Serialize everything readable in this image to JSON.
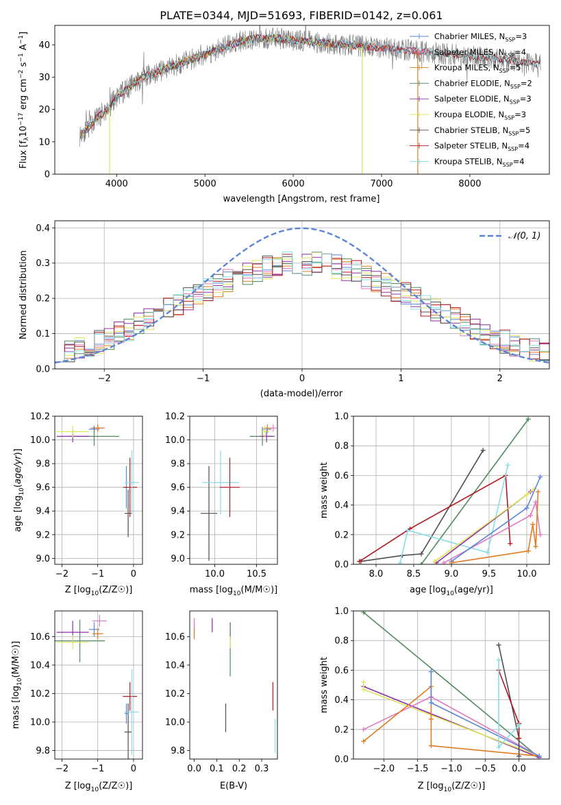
{
  "title": "PLATE=0344, MJD=51693, FIBERID=0142, z=0.061",
  "colors": {
    "MILES_Chabrier": "#5b86d6",
    "MILES_Salpeter": "#e377c2",
    "MILES_Kroupa": "#e07b1e",
    "ELODIE_Chabrier": "#4e8a5e",
    "ELODIE_Salpeter": "#8e2ea3",
    "ELODIE_Kroupa": "#dde55a",
    "STELIB_Chabrier": "#4d4d4d",
    "STELIB_Salpeter": "#b2181f",
    "STELIB_Kroupa": "#86dde6",
    "normal_curve": "#5b86d6",
    "grid": "#b0b0b0"
  },
  "chart_data": [
    {
      "id": "spectrum",
      "type": "line",
      "xlabel": "wavelength [Angstrom, rest frame]",
      "ylabel": "Flux [f_λ10^-17 erg cm^-2 s^-1 A^-1]",
      "xlim": [
        3300,
        8900
      ],
      "ylim": [
        0,
        46
      ],
      "xticks": [
        4000,
        5000,
        6000,
        7000,
        8000
      ],
      "yticks": [
        0,
        10,
        20,
        30,
        40
      ],
      "grid": false,
      "legend_position": "upper-right",
      "continuum": {
        "x": [
          3580,
          3700,
          3800,
          3900,
          4000,
          4100,
          4200,
          4300,
          4400,
          4600,
          4800,
          5000,
          5200,
          5400,
          5600,
          5800,
          6000,
          6200,
          6400,
          6600,
          6800,
          7000,
          7200,
          7400,
          7600,
          7800,
          8000,
          8200,
          8400,
          8600,
          8800
        ],
        "y": [
          12,
          15,
          18,
          20,
          24,
          26,
          28,
          30,
          31,
          33,
          35,
          37,
          39,
          41,
          42,
          42,
          41.5,
          41,
          40.5,
          40,
          39.5,
          39,
          38.5,
          38,
          37.5,
          37,
          36.5,
          36,
          35.5,
          34.5,
          34
        ]
      },
      "series": [
        {
          "name": "Chabrier MILES, N_SSP=3",
          "color_key": "MILES_Chabrier",
          "x_end": 7500
        },
        {
          "name": "Salpeter MILES, N_SSP=4",
          "color_key": "MILES_Salpeter",
          "x_end": 7500
        },
        {
          "name": "Kroupa MILES, N_SSP=5",
          "color_key": "MILES_Kroupa",
          "x_end": 7500
        },
        {
          "name": "Chabrier ELODIE, N_SSP=2",
          "color_key": "ELODIE_Chabrier",
          "x_end": 6800
        },
        {
          "name": "Salpeter ELODIE, N_SSP=3",
          "color_key": "ELODIE_Salpeter",
          "x_end": 6800
        },
        {
          "name": "Kroupa ELODIE, N_SSP=3",
          "color_key": "ELODIE_Kroupa",
          "x_end": 6800
        },
        {
          "name": "Chabrier STELIB, N_SSP=5",
          "color_key": "STELIB_Chabrier",
          "x_end": 8800
        },
        {
          "name": "Salpeter STELIB, N_SSP=4",
          "color_key": "STELIB_Salpeter",
          "x_end": 8800
        },
        {
          "name": "Kroupa STELIB, N_SSP=4",
          "color_key": "STELIB_Kroupa",
          "x_end": 8800
        }
      ],
      "legend_labels": [
        {
          "pre": "Chabrier MILES, N",
          "sub": "SSP",
          "post": "=3"
        },
        {
          "pre": "Salpeter MILES, N",
          "sub": "SSP",
          "post": "=4"
        },
        {
          "pre": "Kroupa MILES, N",
          "sub": "SSP",
          "post": "=5"
        },
        {
          "pre": "Chabrier ELODIE, N",
          "sub": "SSP",
          "post": "=2"
        },
        {
          "pre": "Salpeter ELODIE, N",
          "sub": "SSP",
          "post": "=3"
        },
        {
          "pre": "Kroupa ELODIE, N",
          "sub": "SSP",
          "post": "=3"
        },
        {
          "pre": "Chabrier STELIB, N",
          "sub": "SSP",
          "post": "=5"
        },
        {
          "pre": "Salpeter STELIB, N",
          "sub": "SSP",
          "post": "=4"
        },
        {
          "pre": "Kroupa STELIB, N",
          "sub": "SSP",
          "post": "=4"
        }
      ]
    },
    {
      "id": "residuals",
      "type": "step",
      "xlabel": "(data-model)/error",
      "ylabel": "Normed distribution",
      "xlim": [
        -2.5,
        2.5
      ],
      "ylim": [
        0,
        0.42
      ],
      "xticks": [
        -2,
        -1,
        0,
        1,
        2
      ],
      "xtick_labels": [
        "−2",
        "−1",
        "0",
        "1",
        "2"
      ],
      "yticks": [
        0.0,
        0.1,
        0.2,
        0.3,
        0.4
      ],
      "ytick_labels": [
        "0.0",
        "0.1",
        "0.2",
        "0.3",
        "0.4"
      ],
      "grid": true,
      "bin_width": 0.1,
      "envelope_center": 0.3,
      "envelope_width": 1.25,
      "normal_curve": {
        "name": "𝒩(0, 1)",
        "mean": 0,
        "sigma": 1
      }
    },
    {
      "id": "age_vs_Z",
      "type": "errorbar",
      "xlabel": "Z [log10(Z/Z☉)]",
      "ylabel": "age  [log10(age/yr)]",
      "xlim": [
        -2.2,
        0.25
      ],
      "ylim": [
        8.95,
        10.2
      ],
      "xticks": [
        -2,
        -1,
        0
      ],
      "xtick_labels": [
        "−2",
        "−1",
        "0"
      ],
      "yticks": [
        9.0,
        9.2,
        9.4,
        9.6,
        9.8,
        10.0,
        10.2
      ],
      "ytick_labels": [
        "9.0",
        "9.2",
        "9.4",
        "9.6",
        "9.8",
        "10.0",
        "10.2"
      ],
      "grid": true,
      "points": [
        {
          "k": "MILES_Chabrier",
          "x": -1.1,
          "xerr": 0.15,
          "y": 10.09,
          "yerr": 0.03
        },
        {
          "k": "MILES_Salpeter",
          "x": -1.0,
          "xerr": 0.2,
          "y": 10.1,
          "yerr": 0.03
        },
        {
          "k": "MILES_Kroupa",
          "x": -1.0,
          "xerr": 0.15,
          "y": 10.1,
          "yerr": 0.03
        },
        {
          "k": "ELODIE_Chabrier",
          "x": -1.1,
          "xerr": 0.7,
          "y": 10.03,
          "yerr": 0.08
        },
        {
          "k": "ELODIE_Salpeter",
          "x": -1.7,
          "xerr": 0.45,
          "y": 10.03,
          "yerr": 0.05
        },
        {
          "k": "ELODIE_Kroupa",
          "x": -1.7,
          "xerr": 0.45,
          "y": 10.07,
          "yerr": 0.05
        },
        {
          "k": "MILES_Chabrier",
          "x": -0.2,
          "xerr": 0.05,
          "y": 9.6,
          "yerr": 0.18
        },
        {
          "k": "STELIB_Chabrier",
          "x": -0.15,
          "xerr": 0.1,
          "y": 9.38,
          "yerr": 0.2
        },
        {
          "k": "STELIB_Salpeter",
          "x": -0.1,
          "xerr": 0.2,
          "y": 9.6,
          "yerr": 0.25
        },
        {
          "k": "STELIB_Kroupa",
          "x": -0.05,
          "xerr": 0.2,
          "y": 9.64,
          "yerr": 0.27
        }
      ]
    },
    {
      "id": "age_vs_mass",
      "type": "errorbar",
      "xlabel": "mass [log10(M/M☉)]",
      "ylabel": "",
      "xlim": [
        9.7,
        10.75
      ],
      "ylim": [
        8.95,
        10.2
      ],
      "xticks": [
        10.0,
        10.5
      ],
      "xtick_labels": [
        "10.0",
        "10.5"
      ],
      "yticks": [
        9.0,
        9.2,
        9.4,
        9.6,
        9.8,
        10.0,
        10.2
      ],
      "ytick_labels": [
        "9.0",
        "9.2",
        "9.4",
        "9.6",
        "9.8",
        "10.0",
        "10.2"
      ],
      "grid": true,
      "points": [
        {
          "k": "MILES_Chabrier",
          "x": 10.63,
          "xerr": 0.05,
          "y": 10.09,
          "yerr": 0.03
        },
        {
          "k": "MILES_Salpeter",
          "x": 10.7,
          "xerr": 0.04,
          "y": 10.1,
          "yerr": 0.03
        },
        {
          "k": "MILES_Kroupa",
          "x": 10.63,
          "xerr": 0.04,
          "y": 10.1,
          "yerr": 0.03
        },
        {
          "k": "ELODIE_Chabrier",
          "x": 10.57,
          "xerr": 0.15,
          "y": 10.03,
          "yerr": 0.08
        },
        {
          "k": "ELODIE_Salpeter",
          "x": 10.62,
          "xerr": 0.08,
          "y": 10.03,
          "yerr": 0.05
        },
        {
          "k": "ELODIE_Kroupa",
          "x": 10.6,
          "xerr": 0.05,
          "y": 10.07,
          "yerr": 0.05
        },
        {
          "k": "STELIB_Chabrier",
          "x": 9.93,
          "xerr": 0.1,
          "y": 9.38,
          "yerr": 0.4
        },
        {
          "k": "STELIB_Kroupa",
          "x": 10.07,
          "xerr": 0.22,
          "y": 9.64,
          "yerr": 0.27
        },
        {
          "k": "STELIB_Salpeter",
          "x": 10.18,
          "xerr": 0.12,
          "y": 9.6,
          "yerr": 0.25
        }
      ]
    },
    {
      "id": "massweight_vs_age",
      "type": "line",
      "xlabel": "age  [log10(age/yr)]",
      "ylabel": "mass weight",
      "xlim": [
        7.7,
        10.3
      ],
      "ylim": [
        0,
        1.0
      ],
      "xticks": [
        8.0,
        8.5,
        9.0,
        9.5,
        10.0
      ],
      "xtick_labels": [
        "8.0",
        "8.5",
        "9.0",
        "9.5",
        "10.0"
      ],
      "yticks": [
        0.0,
        0.2,
        0.4,
        0.6,
        0.8,
        1.0
      ],
      "ytick_labels": [
        "0.0",
        "0.2",
        "0.4",
        "0.6",
        "0.8",
        "1.0"
      ],
      "grid": true,
      "series": [
        {
          "k": "ELODIE_Chabrier",
          "x": [
            8.6,
            10.02
          ],
          "y": [
            0.0,
            0.98
          ]
        },
        {
          "k": "STELIB_Chabrier",
          "x": [
            7.8,
            8.35,
            8.6,
            9.42
          ],
          "y": [
            0.02,
            0.06,
            0.07,
            0.77
          ]
        },
        {
          "k": "STELIB_Salpeter",
          "x": [
            7.78,
            8.45,
            9.72,
            9.78
          ],
          "y": [
            0.02,
            0.24,
            0.6,
            0.14
          ]
        },
        {
          "k": "STELIB_Kroupa",
          "x": [
            8.32,
            8.42,
            9.48,
            9.75
          ],
          "y": [
            0.01,
            0.23,
            0.08,
            0.67
          ]
        },
        {
          "k": "ELODIE_Salpeter",
          "x": [
            8.8,
            10.05
          ],
          "y": [
            0.01,
            0.49
          ]
        },
        {
          "k": "ELODIE_Kroupa",
          "x": [
            8.78,
            10.0,
            10.1
          ],
          "y": [
            0.02,
            0.47,
            0.51
          ]
        },
        {
          "k": "MILES_Salpeter",
          "x": [
            8.9,
            10.05,
            10.12,
            10.18
          ],
          "y": [
            0.01,
            0.33,
            0.42,
            0.2
          ]
        },
        {
          "k": "MILES_Chabrier",
          "x": [
            9.0,
            10.0,
            10.18
          ],
          "y": [
            0.02,
            0.38,
            0.59
          ]
        },
        {
          "k": "MILES_Kroupa",
          "x": [
            9.0,
            10.02,
            10.08,
            10.12,
            10.15
          ],
          "y": [
            0.01,
            0.09,
            0.27,
            0.12,
            0.49
          ]
        }
      ]
    },
    {
      "id": "mass_vs_Z",
      "type": "errorbar",
      "xlabel": "Z [log10(Z/Z☉)]",
      "ylabel": "mass [log10(M/M☉)]",
      "xlim": [
        -2.2,
        0.25
      ],
      "ylim": [
        9.74,
        10.78
      ],
      "xticks": [
        -2,
        -1,
        0
      ],
      "xtick_labels": [
        "−2",
        "−1",
        "0"
      ],
      "yticks": [
        9.8,
        10.0,
        10.2,
        10.4,
        10.6
      ],
      "ytick_labels": [
        "9.8",
        "10.0",
        "10.2",
        "10.4",
        "10.6"
      ],
      "grid": true,
      "points": [
        {
          "k": "MILES_Chabrier",
          "x": -1.1,
          "xerr": 0.15,
          "y": 10.65,
          "yerr": 0.05
        },
        {
          "k": "MILES_Salpeter",
          "x": -0.95,
          "xerr": 0.2,
          "y": 10.71,
          "yerr": 0.04
        },
        {
          "k": "MILES_Kroupa",
          "x": -1.0,
          "xerr": 0.15,
          "y": 10.62,
          "yerr": 0.04
        },
        {
          "k": "ELODIE_Chabrier",
          "x": -1.5,
          "xerr": 0.7,
          "y": 10.57,
          "yerr": 0.15
        },
        {
          "k": "ELODIE_Salpeter",
          "x": -1.7,
          "xerr": 0.45,
          "y": 10.63,
          "yerr": 0.08
        },
        {
          "k": "ELODIE_Kroupa",
          "x": -1.7,
          "xerr": 0.45,
          "y": 10.56,
          "yerr": 0.05
        },
        {
          "k": "STELIB_Chabrier",
          "x": -0.15,
          "xerr": 0.1,
          "y": 9.93,
          "yerr": 0.2
        },
        {
          "k": "STELIB_Salpeter",
          "x": -0.1,
          "xerr": 0.2,
          "y": 10.18,
          "yerr": 0.1
        },
        {
          "k": "STELIB_Kroupa",
          "x": -0.05,
          "xerr": 0.2,
          "y": 10.07,
          "yerr": 0.3
        },
        {
          "k": "MILES_Chabrier",
          "x": -0.2,
          "xerr": 0.05,
          "y": 10.06,
          "yerr": 0.07
        }
      ]
    },
    {
      "id": "mass_vs_EBV",
      "type": "errorbar",
      "xlabel": "E(B-V)",
      "ylabel": "",
      "xlim": [
        -0.02,
        0.37
      ],
      "ylim": [
        9.74,
        10.78
      ],
      "xticks": [
        0.0,
        0.1,
        0.2,
        0.3
      ],
      "xtick_labels": [
        "0.0",
        "0.1",
        "0.2",
        "0.3"
      ],
      "yticks": [
        9.8,
        10.0,
        10.2,
        10.4,
        10.6
      ],
      "ytick_labels": [
        "9.8",
        "10.0",
        "10.2",
        "10.4",
        "10.6"
      ],
      "grid": false,
      "points": [
        {
          "k": "MILES_Chabrier",
          "x": 0.0,
          "xerr": 0,
          "y": 10.65,
          "yerr": 0.05
        },
        {
          "k": "MILES_Salpeter",
          "x": 0.0,
          "xerr": 0,
          "y": 10.69,
          "yerr": 0.04
        },
        {
          "k": "MILES_Kroupa",
          "x": 0.0,
          "xerr": 0,
          "y": 10.62,
          "yerr": 0.04
        },
        {
          "k": "ELODIE_Salpeter",
          "x": 0.08,
          "xerr": 0,
          "y": 10.68,
          "yerr": 0.05
        },
        {
          "k": "ELODIE_Salpeter",
          "x": 0.16,
          "xerr": 0,
          "y": 10.64,
          "yerr": 0.06
        },
        {
          "k": "ELODIE_Chabrier",
          "x": 0.16,
          "xerr": 0,
          "y": 10.5,
          "yerr": 0.18
        },
        {
          "k": "ELODIE_Kroupa",
          "x": 0.16,
          "xerr": 0,
          "y": 10.56,
          "yerr": 0.04
        },
        {
          "k": "STELIB_Chabrier",
          "x": 0.14,
          "xerr": 0,
          "y": 10.03,
          "yerr": 0.1
        },
        {
          "k": "STELIB_Salpeter",
          "x": 0.35,
          "xerr": 0,
          "y": 10.18,
          "yerr": 0.1
        },
        {
          "k": "STELIB_Kroupa",
          "x": 0.36,
          "xerr": 0,
          "y": 9.9,
          "yerr": 0.12
        }
      ]
    },
    {
      "id": "massweight_vs_Z",
      "type": "line",
      "xlabel": "Z [log10(Z/Z☉)]",
      "ylabel": "mass weight",
      "xlim": [
        -2.45,
        0.45
      ],
      "ylim": [
        0,
        1.0
      ],
      "xticks": [
        -2.0,
        -1.5,
        -1.0,
        -0.5,
        0.0
      ],
      "xtick_labels": [
        "−2.0",
        "−1.5",
        "−1.0",
        "−0.5",
        "0.0"
      ],
      "yticks": [
        0.0,
        0.2,
        0.4,
        0.6,
        0.8,
        1.0
      ],
      "ytick_labels": [
        "0.0",
        "0.2",
        "0.4",
        "0.6",
        "0.8",
        "1.0"
      ],
      "grid": true,
      "series": [
        {
          "k": "ELODIE_Chabrier",
          "x": [
            -2.3,
            0.3
          ],
          "y": [
            0.99,
            0.01
          ]
        },
        {
          "k": "ELODIE_Salpeter",
          "x": [
            -2.3,
            0.3
          ],
          "y": [
            0.49,
            0.01
          ]
        },
        {
          "k": "ELODIE_Kroupa",
          "x": [
            -2.3,
            -2.3,
            0.3
          ],
          "y": [
            0.52,
            0.47,
            0.02
          ]
        },
        {
          "k": "MILES_Salpeter",
          "x": [
            -2.3,
            -1.3,
            0.3
          ],
          "y": [
            0.2,
            0.42,
            0.02
          ]
        },
        {
          "k": "MILES_Kroupa",
          "x": [
            -2.3,
            -1.3,
            -1.3,
            -1.3,
            0.3
          ],
          "y": [
            0.12,
            0.49,
            0.27,
            0.09,
            0.02
          ]
        },
        {
          "k": "MILES_Chabrier",
          "x": [
            -1.3,
            -1.3,
            0.3
          ],
          "y": [
            0.59,
            0.38,
            0.02
          ]
        },
        {
          "k": "STELIB_Chabrier",
          "x": [
            -0.3,
            0.0,
            0.0
          ],
          "y": [
            0.77,
            0.14,
            0.02
          ]
        },
        {
          "k": "STELIB_Salpeter",
          "x": [
            -0.3,
            0.0,
            0.0
          ],
          "y": [
            0.6,
            0.24,
            0.14
          ]
        },
        {
          "k": "STELIB_Kroupa",
          "x": [
            -0.3,
            -0.3,
            0.0
          ],
          "y": [
            0.67,
            0.08,
            0.23
          ]
        }
      ]
    }
  ]
}
